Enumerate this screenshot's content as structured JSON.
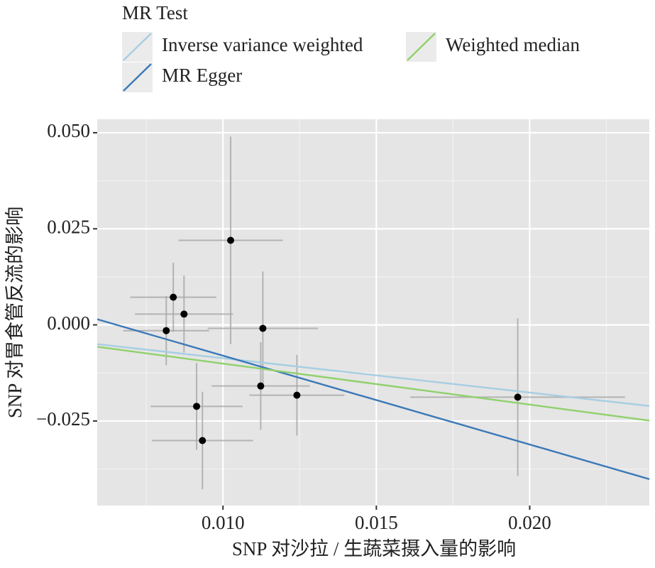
{
  "chart_data": {
    "type": "scatter",
    "legend_title": "MR Test",
    "x_label": "SNP 对沙拉 / 生蔬菜摄入量的影响",
    "y_label": "SNP 对胃食管反流的影响",
    "xlim": [
      0.0059,
      0.0239
    ],
    "ylim": [
      -0.047,
      0.0535
    ],
    "xticks": [
      {
        "value": 0.01,
        "label": "0.010"
      },
      {
        "value": 0.015,
        "label": "0.015"
      },
      {
        "value": 0.02,
        "label": "0.020"
      }
    ],
    "yticks": [
      {
        "value": 0.05,
        "label": "0.050"
      },
      {
        "value": 0.025,
        "label": "0.025"
      },
      {
        "value": 0,
        "label": "0.000"
      },
      {
        "value": -0.025,
        "label": "−0.025"
      }
    ],
    "grid": true,
    "points": {
      "color": "#000000",
      "error_color": "#a6a6a6",
      "x": [
        0.00815,
        0.00838,
        0.00873,
        0.01025,
        0.0113,
        0.01123,
        0.01241,
        0.00914,
        0.00933,
        0.01961
      ],
      "y": [
        -0.0015,
        0.0072,
        0.0028,
        0.022,
        -0.0009,
        -0.0159,
        -0.0183,
        -0.0212,
        -0.0301,
        -0.0188
      ],
      "xerr": [
        0.0014,
        0.0014,
        0.0016,
        0.0017,
        0.0018,
        0.0016,
        0.00155,
        0.0015,
        0.00165,
        0.0035
      ],
      "yerr": [
        0.009,
        0.009,
        0.01,
        0.027,
        0.0148,
        0.0114,
        0.0105,
        0.0113,
        0.0127,
        0.0205
      ]
    },
    "lines": [
      {
        "name": "Inverse variance weighted",
        "color": "#a6cee3",
        "slope": -0.894,
        "intercept": 0.00027
      },
      {
        "name": "MR Egger",
        "color": "#3a78b8",
        "slope": -2.311,
        "intercept": 0.0151
      },
      {
        "name": "Weighted median",
        "color": "#8fd16a",
        "slope": -1.067,
        "intercept": 0.0006
      }
    ]
  }
}
